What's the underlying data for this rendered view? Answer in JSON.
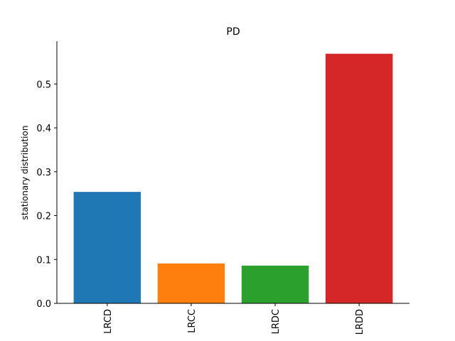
{
  "chart_data": {
    "type": "bar",
    "title": "PD",
    "xlabel": "",
    "ylabel": "stationary distribution",
    "categories": [
      "LRCD",
      "LRCC",
      "LRDC",
      "LRDD"
    ],
    "values": [
      0.254,
      0.091,
      0.086,
      0.569
    ],
    "colors": [
      "#1f77b4",
      "#ff7f0e",
      "#2ca02c",
      "#d62728"
    ],
    "ylim": [
      0,
      0.6
    ],
    "yticks": [
      0.0,
      0.1,
      0.2,
      0.3,
      0.4,
      0.5
    ],
    "ytick_labels": [
      "0.0",
      "0.1",
      "0.2",
      "0.3",
      "0.4",
      "0.5"
    ],
    "grid": false,
    "legend": "none",
    "xtick_rotation": "vertical"
  }
}
